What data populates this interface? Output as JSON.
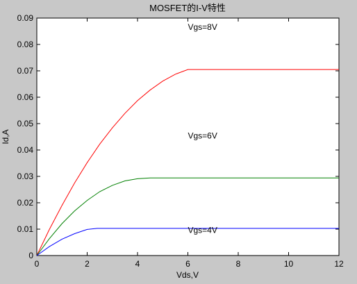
{
  "colors": {
    "figure_background": "#c8c8c8",
    "axes_background": "#ffffff"
  },
  "chart_data": {
    "type": "line",
    "title": "MOSFET的I-V特性",
    "xlabel": "Vds,V",
    "ylabel": "Id,A",
    "xlim": [
      0,
      12
    ],
    "ylim": [
      0,
      0.09
    ],
    "xticks": [
      0,
      2,
      4,
      6,
      8,
      10,
      12
    ],
    "xtick_labels": [
      "0",
      "2",
      "4",
      "6",
      "8",
      "10",
      "12"
    ],
    "yticks": [
      0,
      0.01,
      0.02,
      0.03,
      0.04,
      0.05,
      0.06,
      0.07,
      0.08,
      0.09
    ],
    "ytick_labels": [
      "0",
      "0.01",
      "0.02",
      "0.03",
      "0.04",
      "0.05",
      "0.06",
      "0.07",
      "0.08",
      "0.09"
    ],
    "grid": false,
    "legend": "none",
    "series": [
      {
        "color": "#ff0000",
        "x": [
          0,
          0.5,
          1,
          1.5,
          2,
          2.5,
          3,
          3.5,
          4,
          4.5,
          5,
          5.5,
          6,
          7,
          8,
          9,
          10,
          11,
          12
        ],
        "y": [
          0,
          0.0099,
          0.019,
          0.0275,
          0.0352,
          0.0422,
          0.0484,
          0.0539,
          0.0587,
          0.0627,
          0.0661,
          0.0687,
          0.0705,
          0.0705,
          0.0705,
          0.0705,
          0.0705,
          0.0705,
          0.0705
        ],
        "label": "Vgs=8V"
      },
      {
        "color": "#008000",
        "x": [
          0,
          0.5,
          1,
          1.5,
          2,
          2.5,
          3,
          3.5,
          4,
          4.5,
          5,
          6,
          7,
          8,
          9,
          10,
          11,
          12
        ],
        "y": [
          0,
          0.0064,
          0.0121,
          0.0169,
          0.0209,
          0.0242,
          0.0266,
          0.0283,
          0.0291,
          0.0294,
          0.0294,
          0.0294,
          0.0294,
          0.0294,
          0.0294,
          0.0294,
          0.0294,
          0.0294
        ],
        "label": "Vgs=6V"
      },
      {
        "color": "#0000ff",
        "x": [
          0,
          0.5,
          1,
          1.5,
          2,
          2.4,
          3,
          4,
          5,
          6,
          7,
          8,
          9,
          10,
          11,
          12
        ],
        "y": [
          0,
          0.0034,
          0.0062,
          0.0083,
          0.0099,
          0.0103,
          0.0103,
          0.0103,
          0.0103,
          0.0103,
          0.0103,
          0.0103,
          0.0103,
          0.0103,
          0.0103,
          0.0103
        ],
        "label": "Vgs=4V"
      }
    ],
    "annotations": [
      {
        "text": "Vgs=8V",
        "x": 6,
        "y": 0.0855
      },
      {
        "text": "Vgs=6V",
        "x": 6,
        "y": 0.0443
      },
      {
        "text": "Vgs=4V",
        "x": 6,
        "y": 0.0085
      }
    ]
  }
}
